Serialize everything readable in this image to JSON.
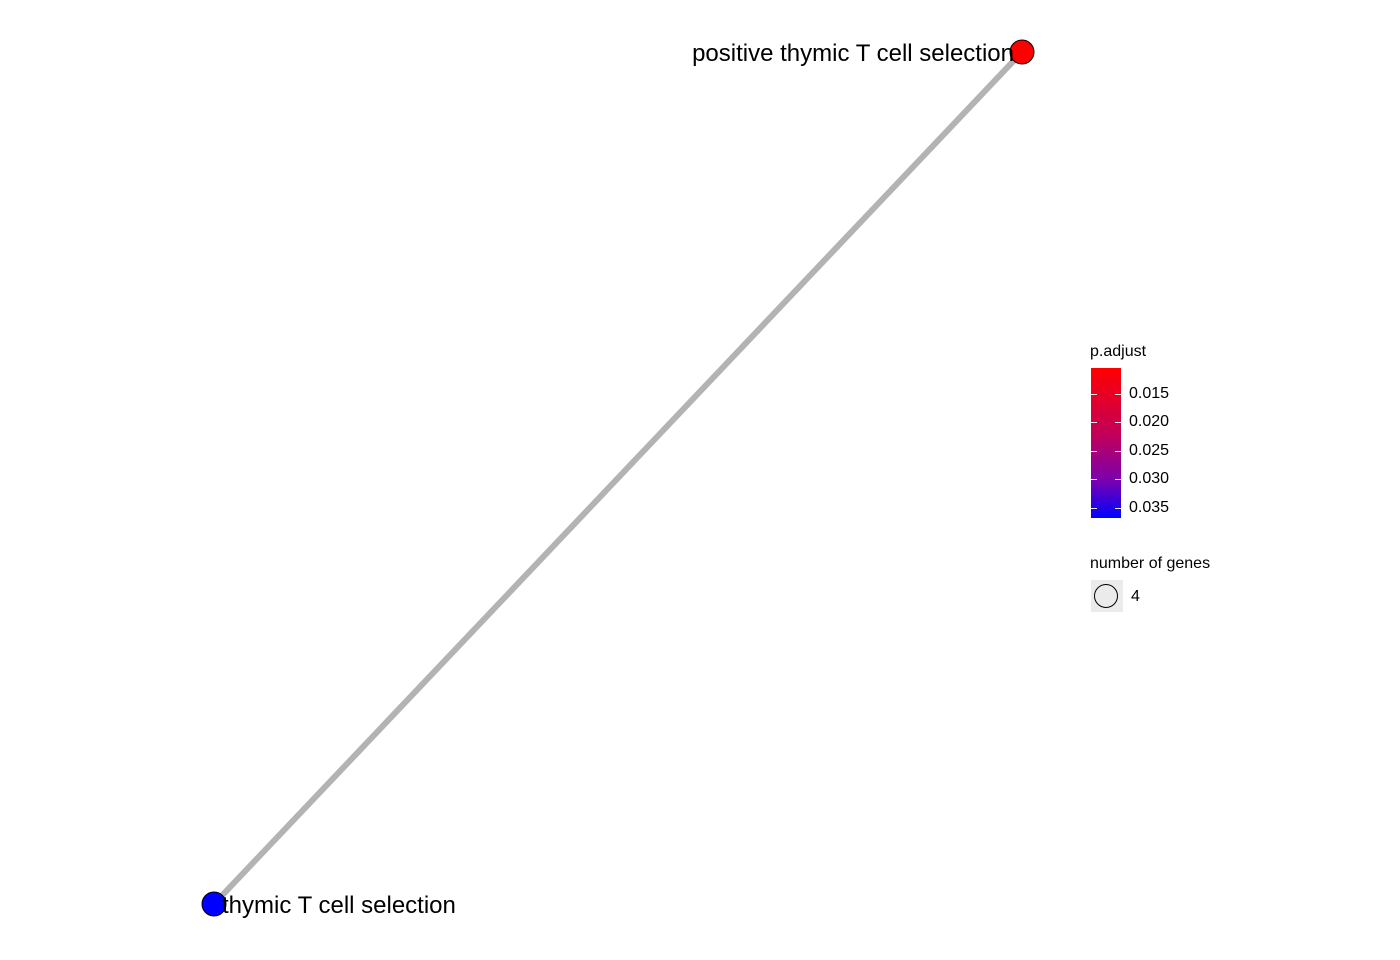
{
  "network": {
    "nodes": [
      {
        "id": "n1",
        "label": "positive thymic T cell selection",
        "p_adjust": 0.011,
        "color": "#ff0000",
        "gene_count": 4
      },
      {
        "id": "n2",
        "label": "thymic T cell selection",
        "p_adjust": 0.037,
        "color": "#0000ff",
        "gene_count": 4
      }
    ],
    "edges": [
      {
        "from": "n1",
        "to": "n2",
        "color": "#b3b3b3"
      }
    ]
  },
  "legend": {
    "color_title": "p.adjust",
    "color_ticks": [
      "0.015",
      "0.020",
      "0.025",
      "0.030",
      "0.035"
    ],
    "color_gradient": {
      "low_value_color": "#ff0000",
      "high_value_color": "#0000ff"
    },
    "size_title": "number of genes",
    "size_values": [
      "4"
    ]
  }
}
